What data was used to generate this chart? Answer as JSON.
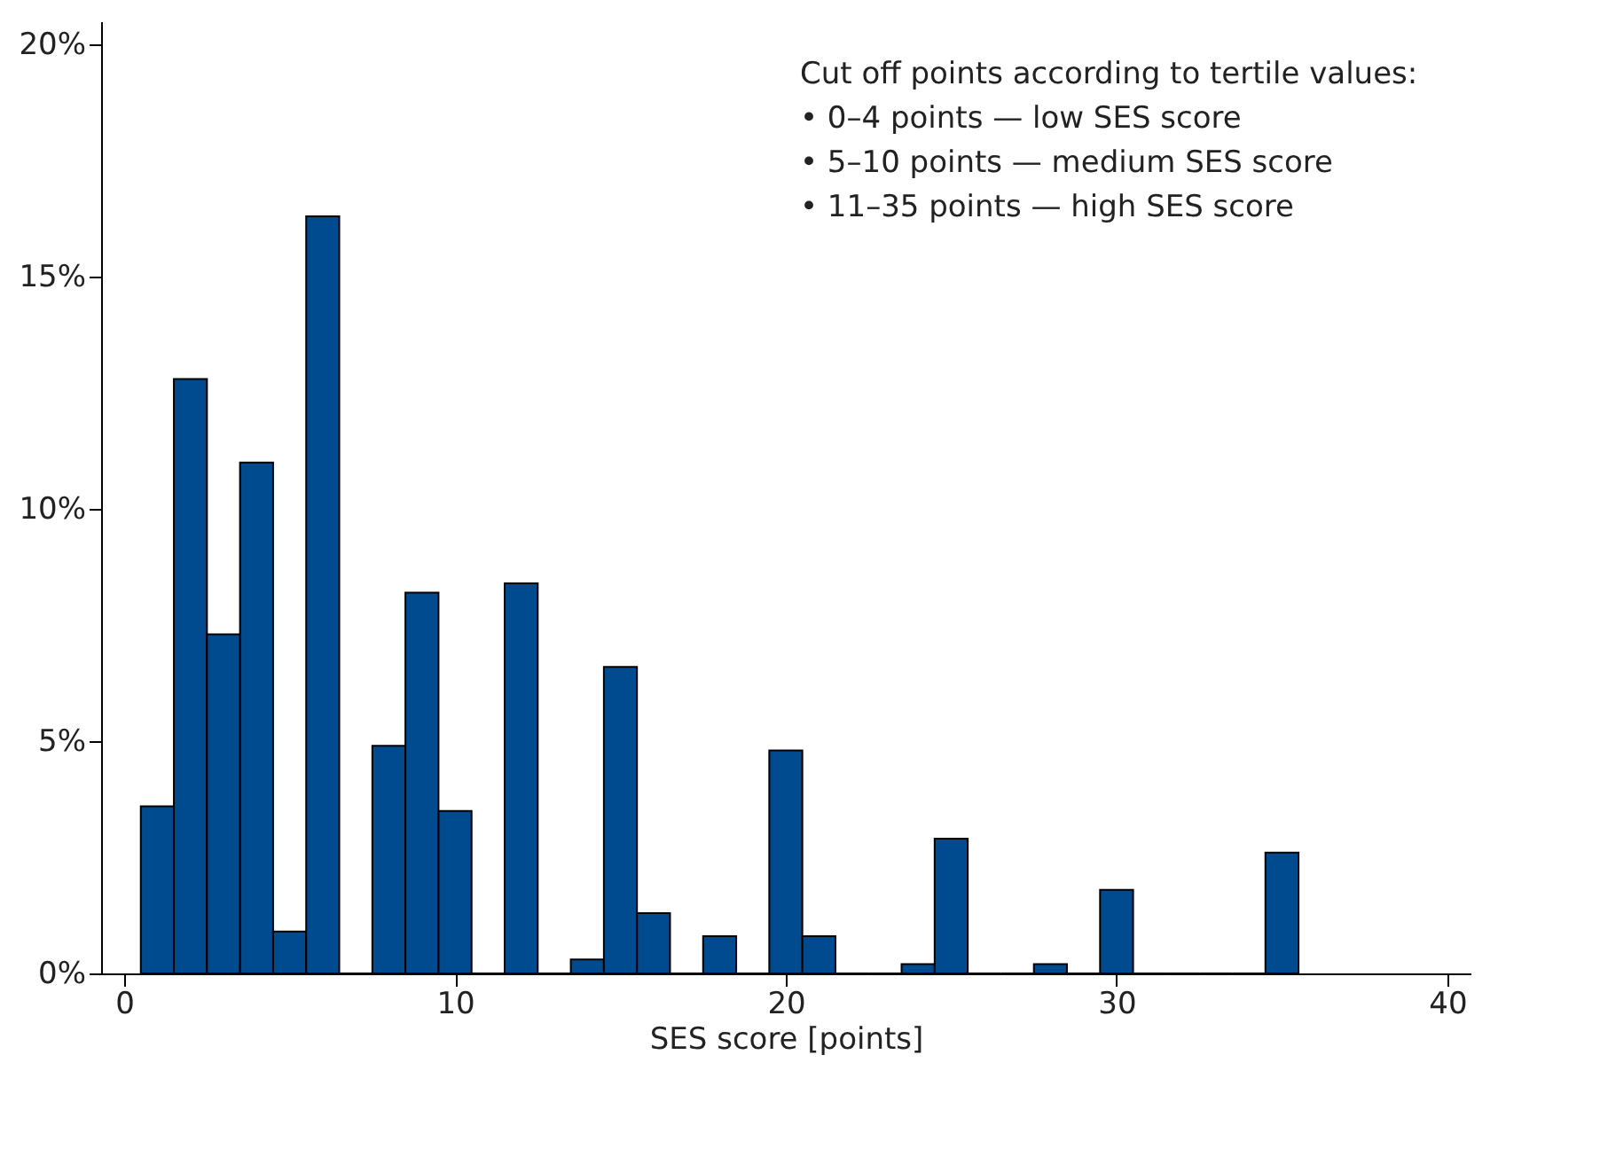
{
  "chart_data": {
    "type": "histogram",
    "xlabel": "SES score [points]",
    "bins": [
      0.5,
      1.5,
      2.5,
      3.5,
      4.5,
      5.5,
      6.5,
      7.5,
      8.5,
      9.5,
      10.5,
      11.5,
      12.5,
      13.5,
      14.5,
      15.5,
      16.5,
      17.5,
      18.5,
      19.5,
      20.5,
      21.5,
      22.5,
      23.5,
      24.5,
      25.5,
      26.5,
      27.5,
      28.5,
      29.5,
      30.5,
      31.5,
      32.5,
      33.5,
      34.5,
      35.5
    ],
    "values": [
      3.6,
      12.8,
      7.3,
      11.0,
      0.9,
      16.3,
      0,
      4.9,
      8.2,
      3.5,
      0,
      8.4,
      0,
      0.3,
      6.6,
      1.3,
      0,
      0.8,
      0,
      4.8,
      0.8,
      0,
      0,
      0.2,
      2.9,
      0,
      0,
      0.2,
      0,
      1.8,
      0,
      0,
      0,
      0,
      2.6
    ],
    "color": "#004a8f",
    "xlim": [
      -0.7,
      40.7
    ],
    "xticks": [
      0,
      10,
      20,
      30,
      40
    ],
    "ylim": [
      0,
      20.5
    ],
    "yticks": [
      {
        "value": 0,
        "label": "0%"
      },
      {
        "value": 5,
        "label": "5%"
      },
      {
        "value": 10,
        "label": "10%"
      },
      {
        "value": 15,
        "label": "15%"
      },
      {
        "value": 20,
        "label": "20%"
      }
    ],
    "grid": false,
    "annotations": [
      "Cut off points according to tertile values:",
      "• 0–4 points — low SES score",
      "• 5–10 points — medium SES score",
      "• 11–35 points — high SES score"
    ]
  }
}
